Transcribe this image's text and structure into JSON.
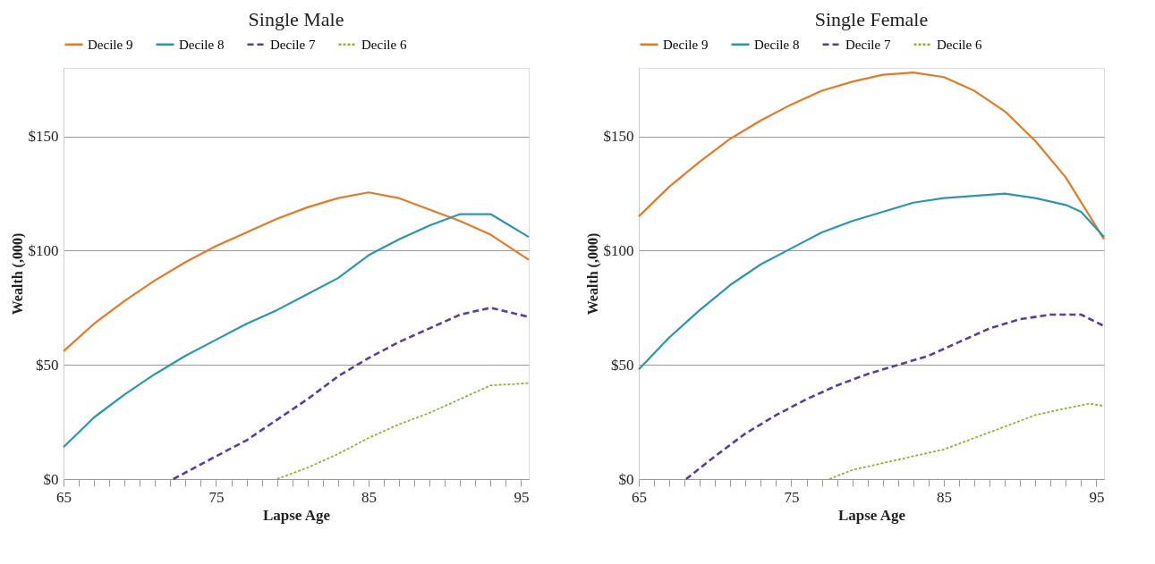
{
  "chart_data": [
    {
      "type": "line",
      "title": "Single Male",
      "xlabel": "Lapse Age",
      "ylabel": "Wealth (,000)",
      "xlim": [
        65,
        95.5
      ],
      "ylim": [
        0,
        180
      ],
      "xticks": [
        65,
        {
          "value": 66,
          "label": null
        },
        {
          "value": 67,
          "label": null
        },
        {
          "value": 68,
          "label": null
        },
        {
          "value": 69,
          "label": null
        },
        {
          "value": 70,
          "label": null
        },
        {
          "value": 71,
          "label": null
        },
        {
          "value": 72,
          "label": null
        },
        {
          "value": 73,
          "label": null
        },
        {
          "value": 74,
          "label": null
        },
        75,
        {
          "value": 76,
          "label": null
        },
        {
          "value": 77,
          "label": null
        },
        {
          "value": 78,
          "label": null
        },
        {
          "value": 79,
          "label": null
        },
        {
          "value": 80,
          "label": null
        },
        {
          "value": 81,
          "label": null
        },
        {
          "value": 82,
          "label": null
        },
        {
          "value": 83,
          "label": null
        },
        {
          "value": 84,
          "label": null
        },
        85,
        {
          "value": 86,
          "label": null
        },
        {
          "value": 87,
          "label": null
        },
        {
          "value": 88,
          "label": null
        },
        {
          "value": 89,
          "label": null
        },
        {
          "value": 90,
          "label": null
        },
        {
          "value": 91,
          "label": null
        },
        {
          "value": 92,
          "label": null
        },
        {
          "value": 93,
          "label": null
        },
        {
          "value": 94,
          "label": null
        },
        95
      ],
      "yticks": [
        {
          "value": 0,
          "label": "$0"
        },
        {
          "value": 50,
          "label": "$50"
        },
        {
          "value": 100,
          "label": "$100"
        },
        {
          "value": 150,
          "label": "$150"
        }
      ],
      "grid": "y",
      "legend": "top",
      "marker": "none",
      "series": [
        {
          "name": "Decile 9",
          "color": "#e07b2a",
          "line_style": "solid",
          "x": [
            65,
            67,
            69,
            71,
            73,
            75,
            77,
            79,
            81,
            83,
            85,
            87,
            89,
            91,
            93,
            95.5
          ],
          "values": [
            56,
            68,
            78,
            87,
            95,
            102,
            108,
            114,
            119,
            123,
            125.5,
            123,
            118,
            113,
            107,
            96
          ]
        },
        {
          "name": "Decile 8",
          "color": "#2e95ad",
          "line_style": "solid",
          "x": [
            65,
            67,
            69,
            71,
            73,
            75,
            77,
            79,
            81,
            83,
            85,
            87,
            89,
            91,
            93,
            95.5
          ],
          "values": [
            14,
            27,
            37,
            46,
            54,
            61,
            68,
            74,
            81,
            88,
            98,
            105,
            111,
            116,
            116,
            106
          ]
        },
        {
          "name": "Decile 7",
          "color": "#5b3e96",
          "line_style": "dashed",
          "x": [
            72.2,
            75,
            77,
            79,
            81,
            83,
            85,
            87,
            89,
            91,
            93,
            95.5
          ],
          "values": [
            0,
            10,
            17,
            26,
            35,
            45,
            53,
            60,
            66,
            72,
            75,
            71
          ]
        },
        {
          "name": "Decile 6",
          "color": "#8db33a",
          "line_style": "dotted",
          "x": [
            79,
            81,
            83,
            85,
            87,
            89,
            91,
            93,
            95.5
          ],
          "values": [
            0,
            5,
            11,
            18,
            24,
            29,
            35,
            41,
            42
          ]
        }
      ]
    },
    {
      "type": "line",
      "title": "Single Female",
      "xlabel": "Lapse Age",
      "ylabel": "Wealth (,000)",
      "xlim": [
        65,
        95.5
      ],
      "ylim": [
        0,
        180
      ],
      "xticks": [
        65,
        {
          "value": 66,
          "label": null
        },
        {
          "value": 67,
          "label": null
        },
        {
          "value": 68,
          "label": null
        },
        {
          "value": 69,
          "label": null
        },
        {
          "value": 70,
          "label": null
        },
        {
          "value": 71,
          "label": null
        },
        {
          "value": 72,
          "label": null
        },
        {
          "value": 73,
          "label": null
        },
        {
          "value": 74,
          "label": null
        },
        75,
        {
          "value": 76,
          "label": null
        },
        {
          "value": 77,
          "label": null
        },
        {
          "value": 78,
          "label": null
        },
        {
          "value": 79,
          "label": null
        },
        {
          "value": 80,
          "label": null
        },
        {
          "value": 81,
          "label": null
        },
        {
          "value": 82,
          "label": null
        },
        {
          "value": 83,
          "label": null
        },
        {
          "value": 84,
          "label": null
        },
        85,
        {
          "value": 86,
          "label": null
        },
        {
          "value": 87,
          "label": null
        },
        {
          "value": 88,
          "label": null
        },
        {
          "value": 89,
          "label": null
        },
        {
          "value": 90,
          "label": null
        },
        {
          "value": 91,
          "label": null
        },
        {
          "value": 92,
          "label": null
        },
        {
          "value": 93,
          "label": null
        },
        {
          "value": 94,
          "label": null
        },
        95
      ],
      "yticks": [
        {
          "value": 0,
          "label": "$0"
        },
        {
          "value": 50,
          "label": "$50"
        },
        {
          "value": 100,
          "label": "$100"
        },
        {
          "value": 150,
          "label": "$150"
        }
      ],
      "grid": "y",
      "legend": "top",
      "marker": "none",
      "series": [
        {
          "name": "Decile 9",
          "color": "#e07b2a",
          "line_style": "solid",
          "x": [
            65,
            67,
            69,
            71,
            73,
            75,
            77,
            79,
            81,
            83,
            85,
            87,
            89,
            91,
            93,
            95.5
          ],
          "values": [
            115,
            128,
            139,
            149,
            157,
            164,
            170,
            174,
            177,
            178,
            176,
            170,
            161,
            148,
            132,
            105
          ]
        },
        {
          "name": "Decile 8",
          "color": "#2e95ad",
          "line_style": "solid",
          "x": [
            65,
            67,
            69,
            71,
            73,
            75,
            77,
            79,
            81,
            83,
            85,
            87,
            89,
            91,
            93,
            94,
            95.5
          ],
          "values": [
            48,
            62,
            74,
            85,
            94,
            101,
            108,
            113,
            117,
            121,
            123,
            124,
            125,
            123,
            120,
            117,
            106
          ]
        },
        {
          "name": "Decile 7",
          "color": "#5b3e96",
          "line_style": "dashed",
          "x": [
            68.1,
            70,
            72,
            74,
            76,
            78,
            80,
            82,
            84,
            86,
            88,
            90,
            92,
            94,
            95.5
          ],
          "values": [
            0,
            10,
            20,
            28,
            35,
            41,
            46,
            50,
            54,
            60,
            66,
            70,
            72,
            72,
            67
          ]
        },
        {
          "name": "Decile 6",
          "color": "#8db33a",
          "line_style": "dotted",
          "x": [
            77.5,
            79,
            81,
            83,
            85,
            87,
            89,
            91,
            93,
            94.5,
            95.5
          ],
          "values": [
            0,
            4,
            7,
            10,
            13,
            18,
            23,
            28,
            31,
            33,
            32
          ]
        }
      ]
    }
  ]
}
